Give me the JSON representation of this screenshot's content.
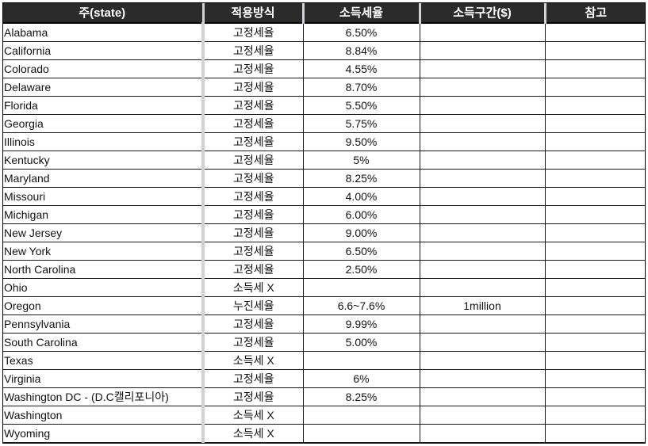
{
  "headers": {
    "state": "주(state)",
    "method": "적용방식",
    "rate": "소득세율",
    "bracket": "소득구간($)",
    "note": "참고"
  },
  "colors": {
    "header_bg": "#2b2b2b",
    "flat_method": "#1f3bbd",
    "no_tax": "#e0141e",
    "highlight_rate": "#e0141e"
  },
  "rows": [
    {
      "state": "Alabama",
      "method": "고정세율",
      "method_style": "blue",
      "rate": "6.50%",
      "rate_style": "dark",
      "bracket": "",
      "note": ""
    },
    {
      "state": "California",
      "method": "고정세율",
      "method_style": "blue",
      "rate": "8.84%",
      "rate_style": "dark",
      "bracket": "",
      "note": ""
    },
    {
      "state": "Colorado",
      "method": "고정세율",
      "method_style": "blue",
      "rate": "4.55%",
      "rate_style": "dark",
      "bracket": "",
      "note": ""
    },
    {
      "state": "Delaware",
      "method": "고정세율",
      "method_style": "blue",
      "rate": "8.70%",
      "rate_style": "dark",
      "bracket": "",
      "note": ""
    },
    {
      "state": "Florida",
      "method": "고정세율",
      "method_style": "blue",
      "rate": "5.50%",
      "rate_style": "dark",
      "bracket": "",
      "note": ""
    },
    {
      "state": "Georgia",
      "method": "고정세율",
      "method_style": "blue",
      "rate": "5.75%",
      "rate_style": "dark",
      "bracket": "",
      "note": ""
    },
    {
      "state": "Illinois",
      "method": "고정세율",
      "method_style": "blue",
      "rate": "9.50%",
      "rate_style": "red",
      "bracket": "",
      "note": ""
    },
    {
      "state": "Kentucky",
      "method": "고정세율",
      "method_style": "blue",
      "rate": "5%",
      "rate_style": "dark",
      "bracket": "",
      "note": ""
    },
    {
      "state": "Maryland",
      "method": "고정세율",
      "method_style": "blue",
      "rate": "8.25%",
      "rate_style": "dark",
      "bracket": "",
      "note": ""
    },
    {
      "state": "Missouri",
      "method": "고정세율",
      "method_style": "blue",
      "rate": "4.00%",
      "rate_style": "dark",
      "bracket": "",
      "note": ""
    },
    {
      "state": "Michigan",
      "method": "고정세율",
      "method_style": "blue",
      "rate": "6.00%",
      "rate_style": "dark",
      "bracket": "",
      "note": ""
    },
    {
      "state": "New Jersey",
      "method": "고정세율",
      "method_style": "blue",
      "rate": "9.00%",
      "rate_style": "red",
      "bracket": "",
      "note": ""
    },
    {
      "state": "New York",
      "method": "고정세율",
      "method_style": "blue",
      "rate": "6.50%",
      "rate_style": "dark",
      "bracket": "",
      "note": ""
    },
    {
      "state": "North Carolina",
      "method": "고정세율",
      "method_style": "blue",
      "rate": "2.50%",
      "rate_style": "red",
      "bracket": "",
      "note": ""
    },
    {
      "state": "Ohio",
      "method": "소득세 X",
      "method_style": "red",
      "rate": "",
      "rate_style": "dark",
      "bracket": "",
      "note": ""
    },
    {
      "state": "Oregon",
      "method": "누진세율",
      "method_style": "dark",
      "rate": "6.6~7.6%",
      "rate_style": "dark",
      "bracket": "1million",
      "note": ""
    },
    {
      "state": "Pennsylvania",
      "method": "고정세율",
      "method_style": "blue",
      "rate": "9.99%",
      "rate_style": "dark",
      "bracket": "",
      "note": ""
    },
    {
      "state": "South Carolina",
      "method": "고정세율",
      "method_style": "blue",
      "rate": "5.00%",
      "rate_style": "dark",
      "bracket": "",
      "note": ""
    },
    {
      "state": "Texas",
      "method": "소득세 X",
      "method_style": "red",
      "rate": "",
      "rate_style": "dark",
      "bracket": "",
      "note": ""
    },
    {
      "state": "Virginia",
      "method": "고정세율",
      "method_style": "blue",
      "rate": "6%",
      "rate_style": "dark",
      "bracket": "",
      "note": ""
    },
    {
      "state": "Washington DC - (D.C캘리포니아)",
      "method": "고정세율",
      "method_style": "blue",
      "rate": "8.25%",
      "rate_style": "dark",
      "bracket": "",
      "note": ""
    },
    {
      "state": "Washington",
      "method": "소득세 X",
      "method_style": "red",
      "rate": "",
      "rate_style": "dark",
      "bracket": "",
      "note": ""
    },
    {
      "state": "Wyoming",
      "method": "소득세 X",
      "method_style": "red",
      "rate": "",
      "rate_style": "dark",
      "bracket": "",
      "note": ""
    }
  ]
}
